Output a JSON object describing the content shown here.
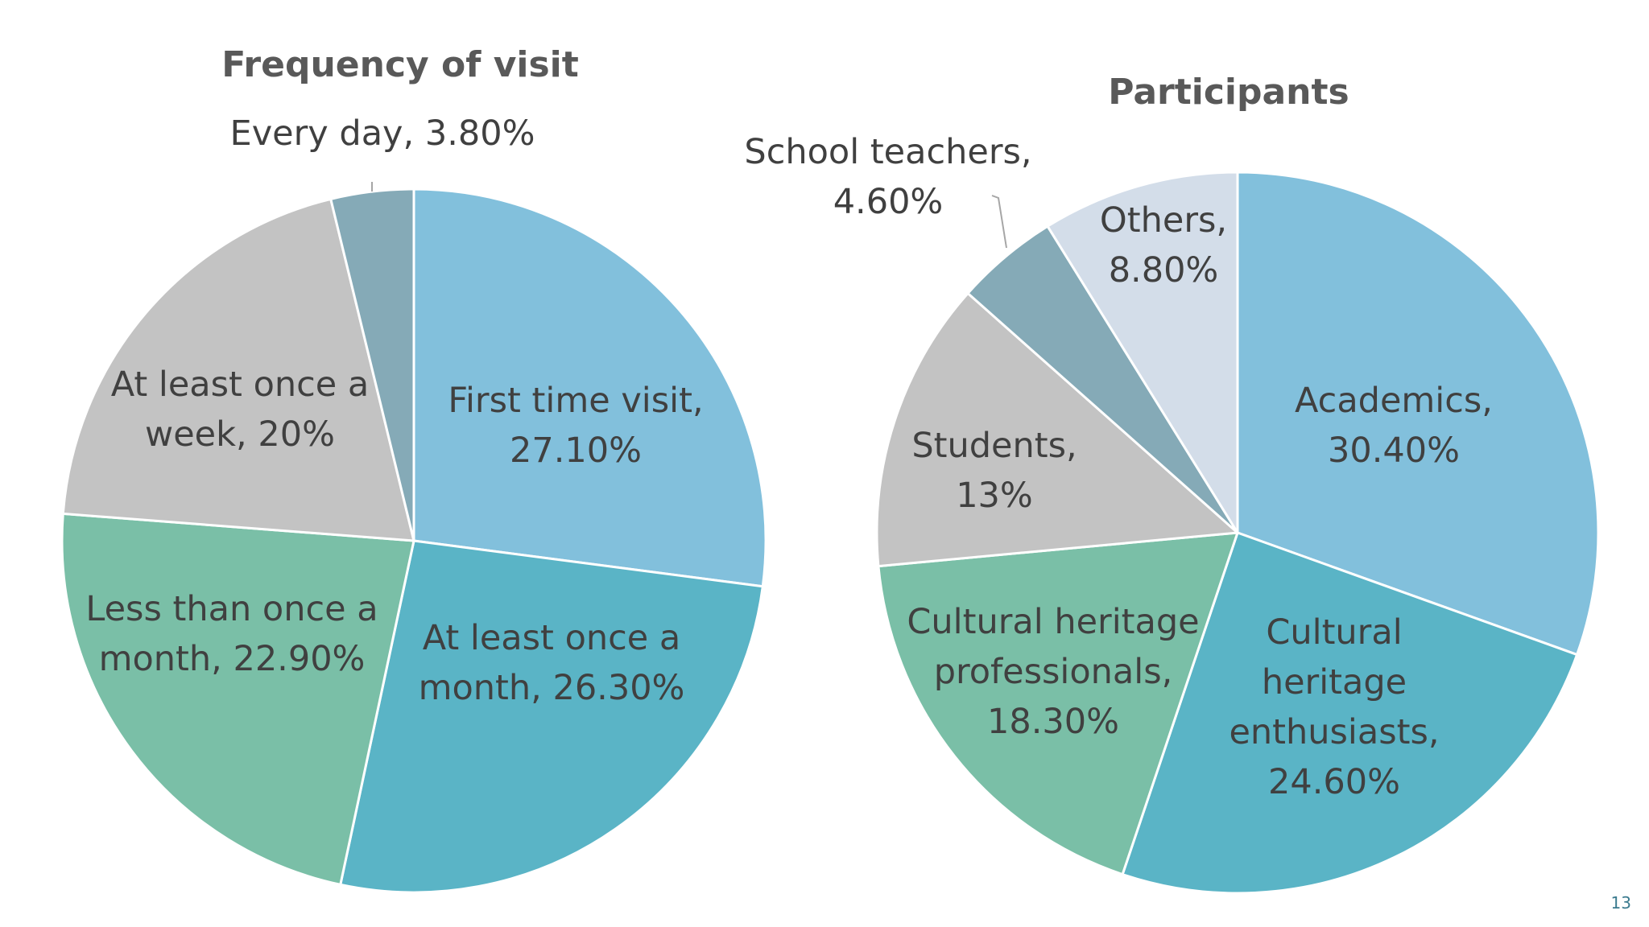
{
  "page": {
    "number": "13"
  },
  "chart_data": [
    {
      "type": "pie",
      "title": "Frequency of visit",
      "slices": [
        {
          "label": "First time visit",
          "value": 27.1,
          "display": "27.10%",
          "color": "#82c0dc"
        },
        {
          "label": "At least once a month",
          "value": 26.3,
          "display": "26.30%",
          "color": "#5ab4c6"
        },
        {
          "label": "Less than once a month",
          "value": 22.9,
          "display": "22.90%",
          "color": "#7abfa7"
        },
        {
          "label": "At least once a week",
          "value": 20.0,
          "display": "20%",
          "color": "#c3c3c3"
        },
        {
          "label": "Every day",
          "value": 3.8,
          "display": "3.80%",
          "color": "#85aab7"
        }
      ]
    },
    {
      "type": "pie",
      "title": "Participants",
      "slices": [
        {
          "label": "Academics",
          "value": 30.4,
          "display": "30.40%",
          "color": "#82c0dc"
        },
        {
          "label": "Cultural heritage enthusiasts",
          "value": 24.6,
          "display": "24.60%",
          "color": "#5ab4c6"
        },
        {
          "label": "Cultural heritage professionals",
          "value": 18.3,
          "display": "18.30%",
          "color": "#7abfa7"
        },
        {
          "label": "Students",
          "value": 13.0,
          "display": "13%",
          "color": "#c3c3c3"
        },
        {
          "label": "School teachers",
          "value": 4.6,
          "display": "4.60%",
          "color": "#85aab7"
        },
        {
          "label": "Others",
          "value": 8.8,
          "display": "8.80%",
          "color": "#d3dde9"
        }
      ]
    }
  ]
}
